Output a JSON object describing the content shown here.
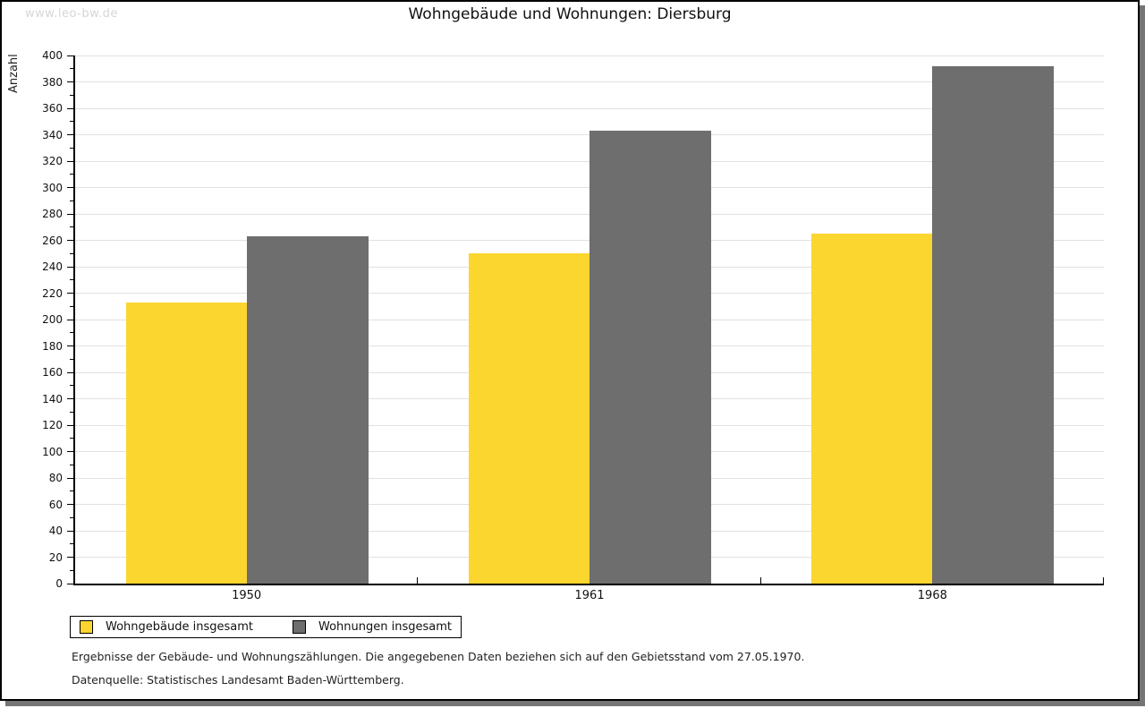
{
  "watermark": "www.leo-bw.de",
  "chart_data": {
    "type": "bar",
    "title": "Wohngebäude und Wohnungen: Diersburg",
    "ylabel": "Anzahl",
    "xlabel": "",
    "categories": [
      "1950",
      "1961",
      "1968"
    ],
    "series": [
      {
        "name": "Wohngebäude insgesamt",
        "color": "#FBD62F",
        "values": [
          213,
          250,
          265
        ]
      },
      {
        "name": "Wohnungen insgesamt",
        "color": "#6E6E6E",
        "values": [
          263,
          343,
          392
        ]
      }
    ],
    "ylim": [
      0,
      400
    ],
    "ytick_step": 20,
    "ytick_minor_step": 10,
    "grid": true,
    "gridline_color": "#e1e1e1",
    "legend_position": "bottom-left"
  },
  "footnotes": {
    "line1": "Ergebnisse der Gebäude- und Wohnungszählungen. Die angegebenen Daten beziehen sich auf den Gebietsstand vom 27.05.1970.",
    "line2": "Datenquelle: Statistisches Landesamt Baden-Württemberg."
  },
  "colors": {
    "page_border": "#000000",
    "page_shadow": "#757575",
    "watermark": "#d6d6d6"
  }
}
